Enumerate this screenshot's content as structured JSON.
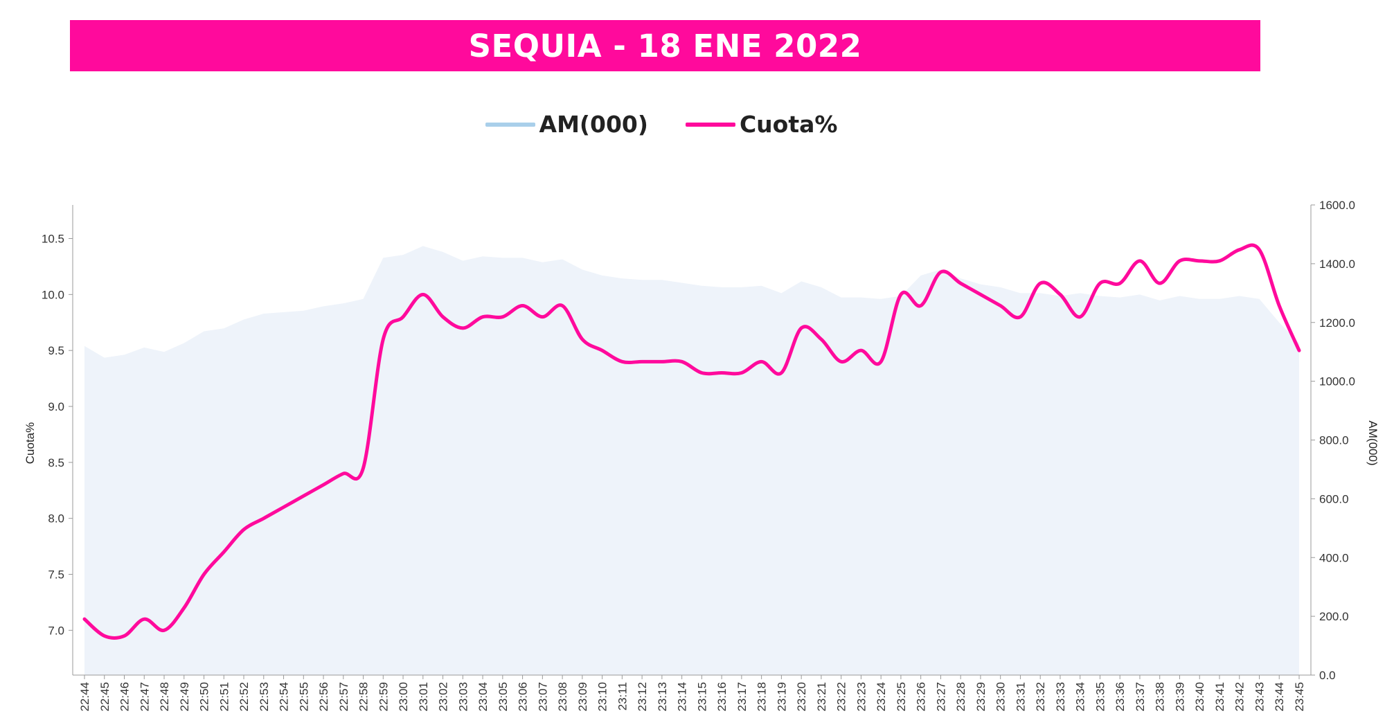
{
  "colors": {
    "banner": "#FF0A9C",
    "cuota_line": "#FF0A9C",
    "am_area": "#EEF3FA",
    "am_legend": "#A9CFEA",
    "axis": "#999999"
  },
  "chart_data": {
    "type": "line",
    "title": "SEQUIA - 18 ENE 2022",
    "categories": [
      "22:44",
      "22:45",
      "22:46",
      "22:47",
      "22:48",
      "22:49",
      "22:50",
      "22:51",
      "22:52",
      "22:53",
      "22:54",
      "22:55",
      "22:56",
      "22:57",
      "22:58",
      "22:59",
      "23:00",
      "23:01",
      "23:02",
      "23:03",
      "23:04",
      "23:05",
      "23:06",
      "23:07",
      "23:08",
      "23:09",
      "23:10",
      "23:11",
      "23:12",
      "23:13",
      "23:14",
      "23:15",
      "23:16",
      "23:17",
      "23:18",
      "23:19",
      "23:20",
      "23:21",
      "23:22",
      "23:23",
      "23:24",
      "23:25",
      "23:26",
      "23:27",
      "23:28",
      "23:29",
      "23:30",
      "23:31",
      "23:32",
      "23:33",
      "23:34",
      "23:35",
      "23:36",
      "23:37",
      "23:38",
      "23:39",
      "23:40",
      "23:41",
      "23:42",
      "23:43",
      "23:44",
      "23:45"
    ],
    "series": [
      {
        "name": "AM(000)",
        "type": "area",
        "axis": "right",
        "values": [
          1120,
          1080,
          1090,
          1115,
          1100,
          1130,
          1170,
          1180,
          1210,
          1230,
          1235,
          1240,
          1255,
          1265,
          1280,
          1420,
          1430,
          1460,
          1440,
          1410,
          1425,
          1420,
          1420,
          1405,
          1415,
          1380,
          1360,
          1350,
          1345,
          1345,
          1335,
          1325,
          1320,
          1320,
          1325,
          1300,
          1340,
          1320,
          1285,
          1285,
          1280,
          1290,
          1360,
          1380,
          1350,
          1330,
          1320,
          1300,
          1300,
          1290,
          1300,
          1290,
          1285,
          1295,
          1275,
          1290,
          1280,
          1280,
          1290,
          1280,
          1200,
          1130
        ]
      },
      {
        "name": "Cuota%",
        "type": "line",
        "axis": "left",
        "values": [
          7.1,
          6.95,
          6.95,
          7.1,
          7.0,
          7.2,
          7.5,
          7.7,
          7.9,
          8.0,
          8.1,
          8.2,
          8.3,
          8.4,
          8.45,
          9.6,
          9.8,
          10.0,
          9.8,
          9.7,
          9.8,
          9.8,
          9.9,
          9.8,
          9.9,
          9.6,
          9.5,
          9.4,
          9.4,
          9.4,
          9.4,
          9.3,
          9.3,
          9.3,
          9.4,
          9.3,
          9.7,
          9.6,
          9.4,
          9.5,
          9.4,
          10.0,
          9.9,
          10.2,
          10.1,
          10.0,
          9.9,
          9.8,
          10.1,
          10.0,
          9.8,
          10.1,
          10.1,
          10.3,
          10.1,
          10.3,
          10.3,
          10.3,
          10.4,
          10.4,
          9.9,
          9.5
        ]
      }
    ],
    "left_axis": {
      "label": "Cuota%",
      "min": 6.6,
      "max": 10.8,
      "ticks": [
        7.0,
        7.5,
        8.0,
        8.5,
        9.0,
        9.5,
        10.0,
        10.5
      ],
      "tick_labels": [
        "7.0",
        "7.5",
        "8.0",
        "8.5",
        "9.0",
        "9.5",
        "10.0",
        "10.5"
      ]
    },
    "right_axis": {
      "label": "AM(000)",
      "min": 0,
      "max": 1600,
      "ticks": [
        0,
        200,
        400,
        600,
        800,
        1000,
        1200,
        1400,
        1600
      ],
      "tick_labels": [
        "0.0",
        "200.0",
        "400.0",
        "600.0",
        "800.0",
        "1000.0",
        "1200.0",
        "1400.0",
        "1600.0"
      ]
    },
    "legend": {
      "position": "top-center",
      "entries": [
        "AM(000)",
        "Cuota%"
      ]
    }
  }
}
